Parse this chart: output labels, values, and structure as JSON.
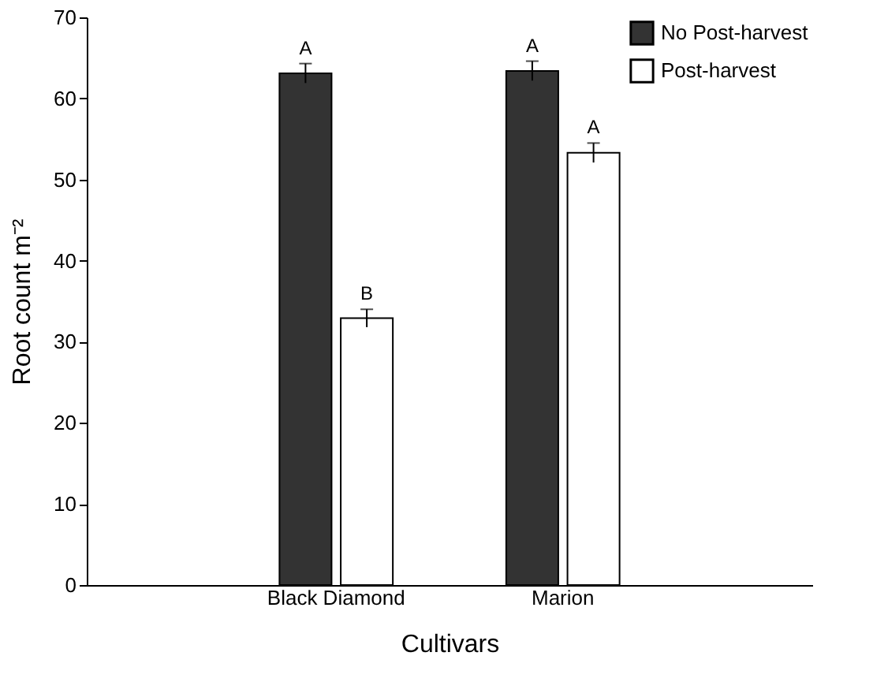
{
  "chart_data": {
    "type": "bar",
    "xlabel": "Cultivars",
    "ylabel": "Root count m⁻²",
    "categories": [
      "Black Diamond",
      "Marion"
    ],
    "series": [
      {
        "name": "No Post-harvest",
        "color": "#333333",
        "values": [
          63.1,
          63.4
        ],
        "errors": [
          1.2,
          1.2
        ],
        "value_labels": [
          "A",
          "A"
        ]
      },
      {
        "name": "Post-harvest",
        "color": "#ffffff",
        "values": [
          32.9,
          53.3
        ],
        "errors": [
          1.1,
          1.2
        ],
        "value_labels": [
          "B",
          "A"
        ]
      }
    ],
    "ylim": [
      0,
      70
    ],
    "yticks": [
      0,
      10,
      20,
      30,
      40,
      50,
      60,
      70
    ],
    "grid": false,
    "legend": "top right"
  }
}
